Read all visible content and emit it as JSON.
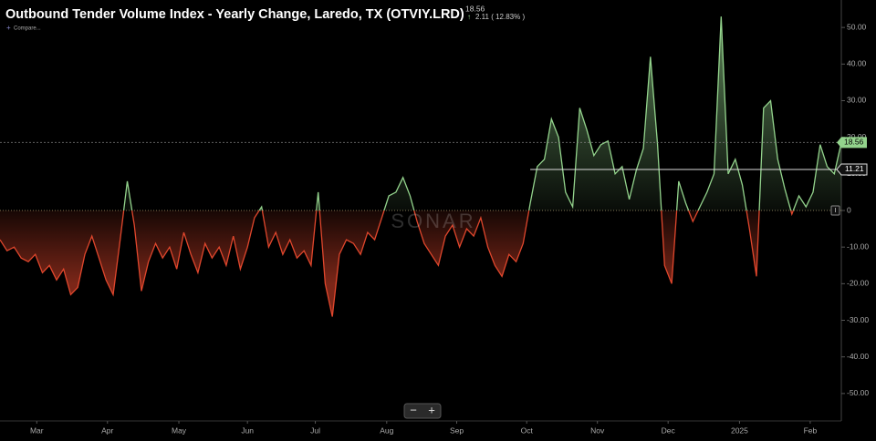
{
  "header": {
    "title": "Outbound Tender Volume Index - Yearly Change, Laredo, TX (OTVIY.LRD)",
    "change": "2.11 ( 12.83% )",
    "compare": "Compare..."
  },
  "watermark": "SONAR",
  "zoom": {
    "out": "−",
    "in": "+"
  },
  "chart_data": {
    "type": "area",
    "values": [
      -8,
      -11,
      -10,
      -13,
      -14,
      -12,
      -17,
      -15,
      -19,
      -16,
      -23,
      -21,
      -12,
      -7,
      -13,
      -19,
      -23,
      -8,
      8,
      -4,
      -22,
      -14,
      -9,
      -13,
      -10,
      -16,
      -6,
      -12,
      -17,
      -9,
      -13,
      -10,
      -15,
      -7,
      -16,
      -10,
      -2,
      1,
      -10,
      -6,
      -12,
      -8,
      -13,
      -11,
      -15,
      5,
      -20,
      -29,
      -12,
      -8,
      -9,
      -12,
      -6,
      -8,
      -2,
      4,
      5,
      9,
      4,
      -3,
      -9,
      -12,
      -15,
      -7,
      -4,
      -10,
      -5,
      -7,
      -2,
      -10,
      -15,
      -18,
      -12,
      -14,
      -9,
      2,
      12,
      14,
      25,
      20,
      5,
      1,
      28,
      22,
      15,
      18,
      19,
      10,
      12,
      3,
      11,
      17,
      42,
      18,
      -15,
      -20,
      8,
      2,
      -3,
      1,
      5,
      10,
      53,
      10,
      14,
      7,
      -5,
      -18,
      28,
      30,
      14,
      6,
      -1,
      4,
      1,
      5,
      18,
      12,
      10,
      18.56
    ],
    "positive_color": "#93d38c",
    "negative_color": "#e0462c",
    "reference_value": 11.21,
    "xlim": [
      0,
      119
    ],
    "xticks": [
      {
        "value": 5.2,
        "label": "Mar"
      },
      {
        "value": 15.2,
        "label": "Apr"
      },
      {
        "value": 25.3,
        "label": "May"
      },
      {
        "value": 35,
        "label": "Jun"
      },
      {
        "value": 44.6,
        "label": "Jul"
      },
      {
        "value": 54.7,
        "label": "Aug"
      },
      {
        "value": 64.6,
        "label": "Sep"
      },
      {
        "value": 74.5,
        "label": "Oct"
      },
      {
        "value": 84.5,
        "label": "Nov"
      },
      {
        "value": 94.5,
        "label": "Dec"
      },
      {
        "value": 104.6,
        "label": "2025"
      },
      {
        "value": 114.6,
        "label": "Feb"
      }
    ],
    "ylim": [
      -57.5,
      57.5
    ],
    "yticks": [
      {
        "value": 50,
        "label": "50.00"
      },
      {
        "value": 40,
        "label": "40.00"
      },
      {
        "value": 30,
        "label": "30.00"
      },
      {
        "value": 20,
        "label": "20.00"
      },
      {
        "value": 10,
        "label": "10.00"
      },
      0,
      {
        "value": -10,
        "label": "-10.00"
      },
      {
        "value": -20,
        "label": "-20.00"
      },
      {
        "value": -30,
        "label": "-30.00"
      },
      {
        "value": -40,
        "label": "-40.00"
      },
      {
        "value": -50,
        "label": "-50.00"
      }
    ]
  }
}
